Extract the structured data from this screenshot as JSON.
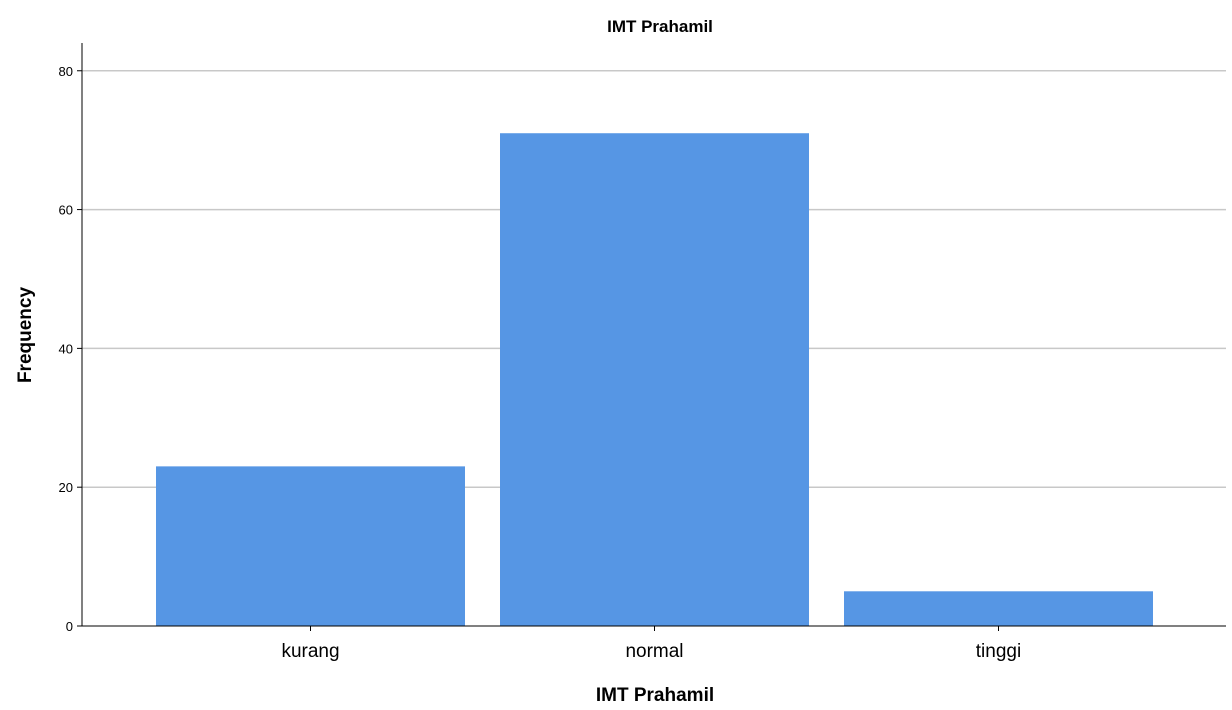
{
  "chart_data": {
    "type": "bar",
    "title": "IMT Prahamil",
    "xlabel": "IMT Prahamil",
    "ylabel": "Frequency",
    "categories": [
      "kurang",
      "normal",
      "tinggi"
    ],
    "values": [
      23,
      71,
      5
    ],
    "ylim": [
      0,
      84
    ],
    "yticks": [
      0,
      20,
      40,
      60,
      80
    ],
    "grid": true,
    "bar_color": "#5696e4"
  }
}
